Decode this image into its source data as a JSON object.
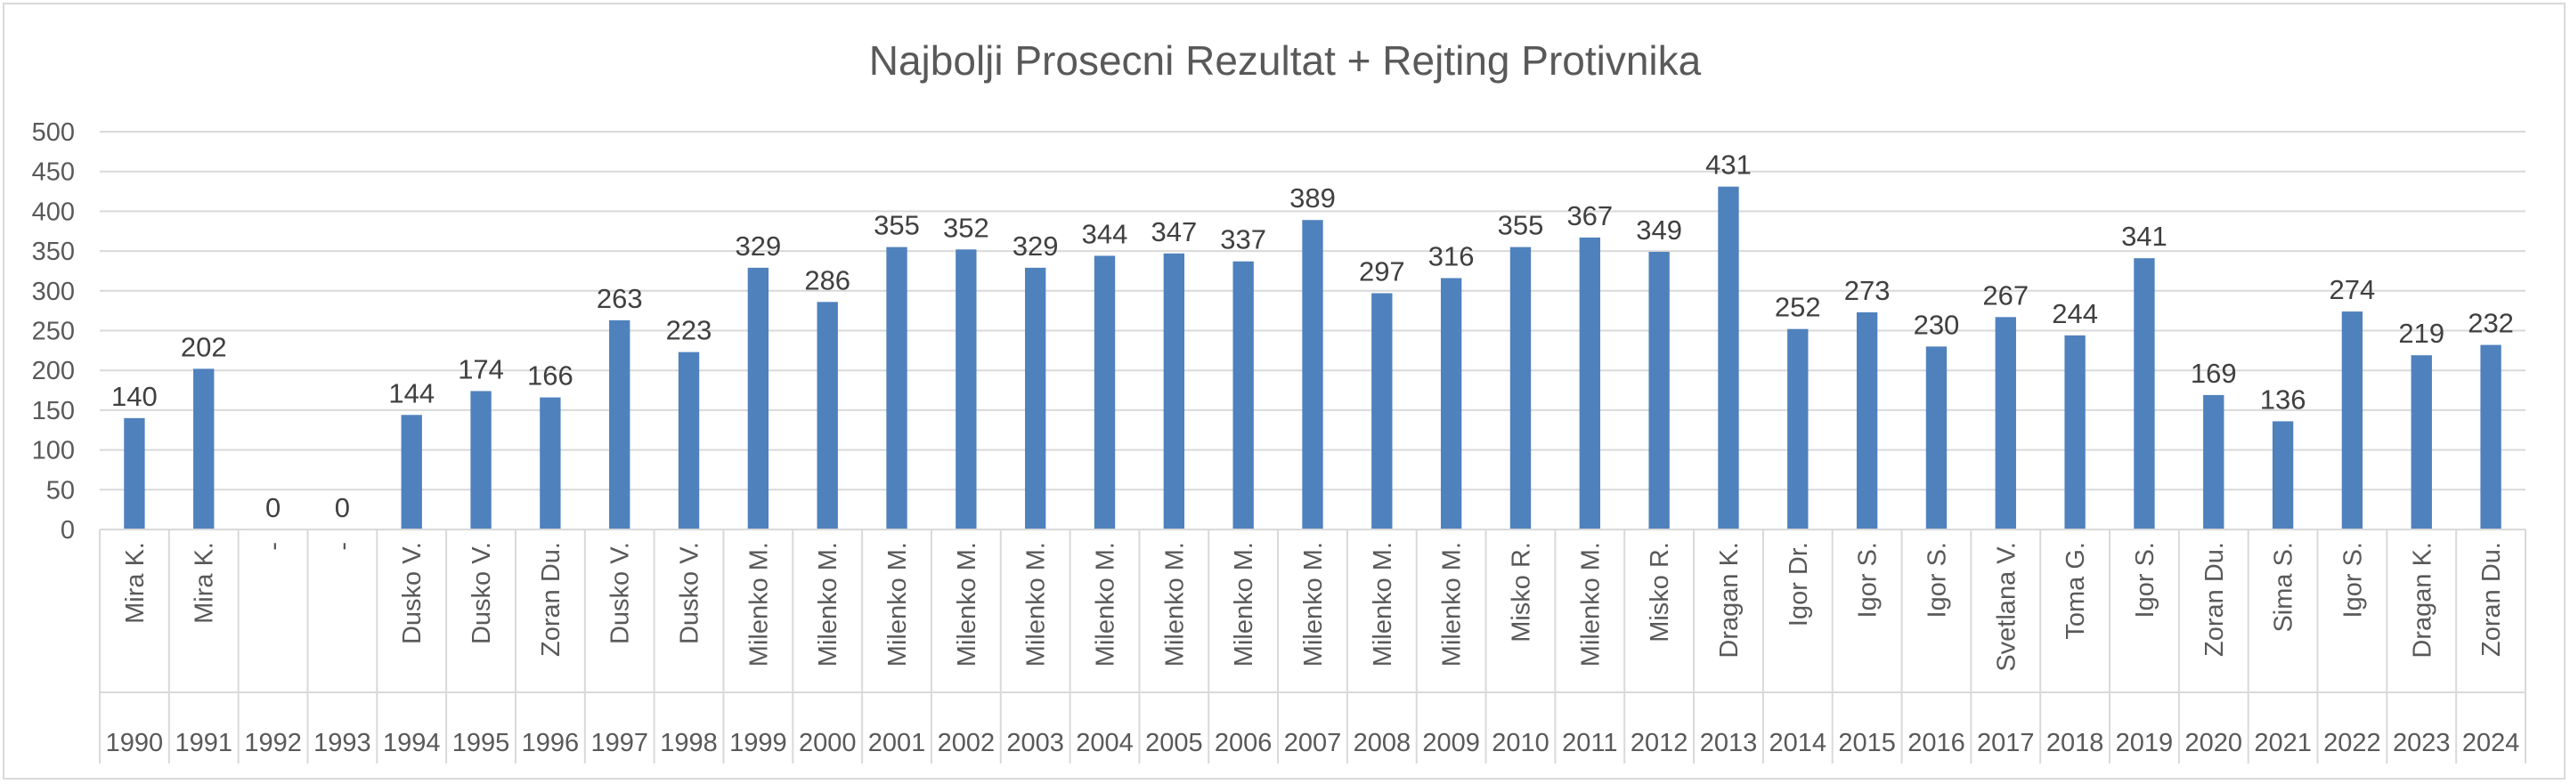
{
  "chart_data": {
    "type": "bar",
    "title": "Najbolji Prosecni Rezultat + Rejting Protivnika",
    "xlabel": "",
    "ylabel": "",
    "ylim": [
      0,
      500
    ],
    "yticks": [
      0,
      50,
      100,
      150,
      200,
      250,
      300,
      350,
      400,
      450,
      500
    ],
    "grid": true,
    "legend": "none",
    "bar_color": "#4f81bd",
    "categories": [
      {
        "name": "Mira K.",
        "year": "1990"
      },
      {
        "name": "Mira K.",
        "year": "1991"
      },
      {
        "name": "-",
        "year": "1992"
      },
      {
        "name": "-",
        "year": "1993"
      },
      {
        "name": "Dusko V.",
        "year": "1994"
      },
      {
        "name": "Dusko V.",
        "year": "1995"
      },
      {
        "name": "Zoran Du.",
        "year": "1996"
      },
      {
        "name": "Dusko V.",
        "year": "1997"
      },
      {
        "name": "Dusko V.",
        "year": "1998"
      },
      {
        "name": "Milenko M.",
        "year": "1999"
      },
      {
        "name": "Milenko M.",
        "year": "2000"
      },
      {
        "name": "Milenko M.",
        "year": "2001"
      },
      {
        "name": "Milenko M.",
        "year": "2002"
      },
      {
        "name": "Milenko M.",
        "year": "2003"
      },
      {
        "name": "Milenko M.",
        "year": "2004"
      },
      {
        "name": "Milenko M.",
        "year": "2005"
      },
      {
        "name": "Milenko M.",
        "year": "2006"
      },
      {
        "name": "Milenko M.",
        "year": "2007"
      },
      {
        "name": "Milenko M.",
        "year": "2008"
      },
      {
        "name": "Milenko M.",
        "year": "2009"
      },
      {
        "name": "Misko R.",
        "year": "2010"
      },
      {
        "name": "Milenko M.",
        "year": "2011"
      },
      {
        "name": "Misko R.",
        "year": "2012"
      },
      {
        "name": "Dragan K.",
        "year": "2013"
      },
      {
        "name": "Igor Dr.",
        "year": "2014"
      },
      {
        "name": "Igor S.",
        "year": "2015"
      },
      {
        "name": "Igor S.",
        "year": "2016"
      },
      {
        "name": "Svetlana V.",
        "year": "2017"
      },
      {
        "name": "Toma G.",
        "year": "2018"
      },
      {
        "name": "Igor S.",
        "year": "2019"
      },
      {
        "name": "Zoran Du.",
        "year": "2020"
      },
      {
        "name": "Sima S.",
        "year": "2021"
      },
      {
        "name": "Igor S.",
        "year": "2022"
      },
      {
        "name": "Dragan K.",
        "year": "2023"
      },
      {
        "name": "Zoran Du.",
        "year": "2024"
      }
    ],
    "values": [
      140,
      202,
      0,
      0,
      144,
      174,
      166,
      263,
      223,
      329,
      286,
      355,
      352,
      329,
      344,
      347,
      337,
      389,
      297,
      316,
      355,
      367,
      349,
      431,
      252,
      273,
      230,
      267,
      244,
      341,
      169,
      136,
      274,
      219,
      232
    ]
  }
}
